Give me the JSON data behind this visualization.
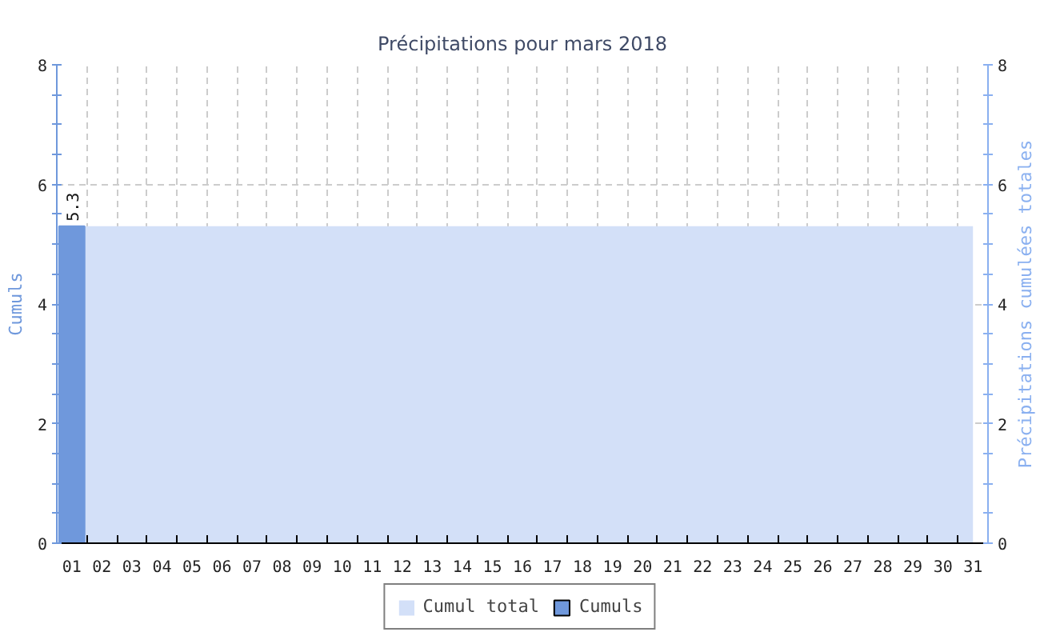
{
  "chart_data": {
    "type": "bar",
    "title": "Précipitations pour mars 2018",
    "ylabel": "Cumuls",
    "y2label": "Précipitations cumulées totales",
    "categories": [
      "01",
      "02",
      "03",
      "04",
      "05",
      "06",
      "07",
      "08",
      "09",
      "10",
      "11",
      "12",
      "13",
      "14",
      "15",
      "16",
      "17",
      "18",
      "19",
      "20",
      "21",
      "22",
      "23",
      "24",
      "25",
      "26",
      "27",
      "28",
      "29",
      "30",
      "31"
    ],
    "series": [
      {
        "name": "Cumul total",
        "type": "area",
        "color": "#d3e0f8",
        "values": [
          5.3,
          5.3,
          5.3,
          5.3,
          5.3,
          5.3,
          5.3,
          5.3,
          5.3,
          5.3,
          5.3,
          5.3,
          5.3,
          5.3,
          5.3,
          5.3,
          5.3,
          5.3,
          5.3,
          5.3,
          5.3,
          5.3,
          5.3,
          5.3,
          5.3,
          5.3,
          5.3,
          5.3,
          5.3,
          5.3,
          5.3
        ]
      },
      {
        "name": "Cumuls",
        "color": "#6f98dc",
        "values": [
          5.3,
          0,
          0,
          0,
          0,
          0,
          0,
          0,
          0,
          0,
          0,
          0,
          0,
          0,
          0,
          0,
          0,
          0,
          0,
          0,
          0,
          0,
          0,
          0,
          0,
          0,
          0,
          0,
          0,
          0,
          0
        ],
        "value_labels": [
          "5.3",
          null,
          null,
          null,
          null,
          null,
          null,
          null,
          null,
          null,
          null,
          null,
          null,
          null,
          null,
          null,
          null,
          null,
          null,
          null,
          null,
          null,
          null,
          null,
          null,
          null,
          null,
          null,
          null,
          null,
          null
        ]
      }
    ],
    "ylim": [
      0,
      8
    ],
    "yticks": [
      0,
      {
        "value": 0.5,
        "label": null
      },
      {
        "value": 1,
        "label": null
      },
      {
        "value": 1.5,
        "label": null
      },
      2,
      {
        "value": 2.5,
        "label": null
      },
      {
        "value": 3,
        "label": null
      },
      {
        "value": 3.5,
        "label": null
      },
      4,
      {
        "value": 4.5,
        "label": null
      },
      {
        "value": 5,
        "label": null
      },
      {
        "value": 5.5,
        "label": null
      },
      6,
      {
        "value": 6.5,
        "label": null
      },
      {
        "value": 7,
        "label": null
      },
      {
        "value": 7.5,
        "label": null
      },
      8
    ],
    "y2lim": [
      0,
      8
    ],
    "y2ticks": [
      0,
      {
        "value": 0.5,
        "label": null
      },
      {
        "value": 1,
        "label": null
      },
      {
        "value": 1.5,
        "label": null
      },
      2,
      {
        "value": 2.5,
        "label": null
      },
      {
        "value": 3,
        "label": null
      },
      {
        "value": 3.5,
        "label": null
      },
      4,
      {
        "value": 4.5,
        "label": null
      },
      {
        "value": 5,
        "label": null
      },
      {
        "value": 5.5,
        "label": null
      },
      6,
      {
        "value": 6.5,
        "label": null
      },
      {
        "value": 7,
        "label": null
      },
      {
        "value": 7.5,
        "label": null
      },
      8
    ],
    "grid": true,
    "legend": "bottom"
  }
}
